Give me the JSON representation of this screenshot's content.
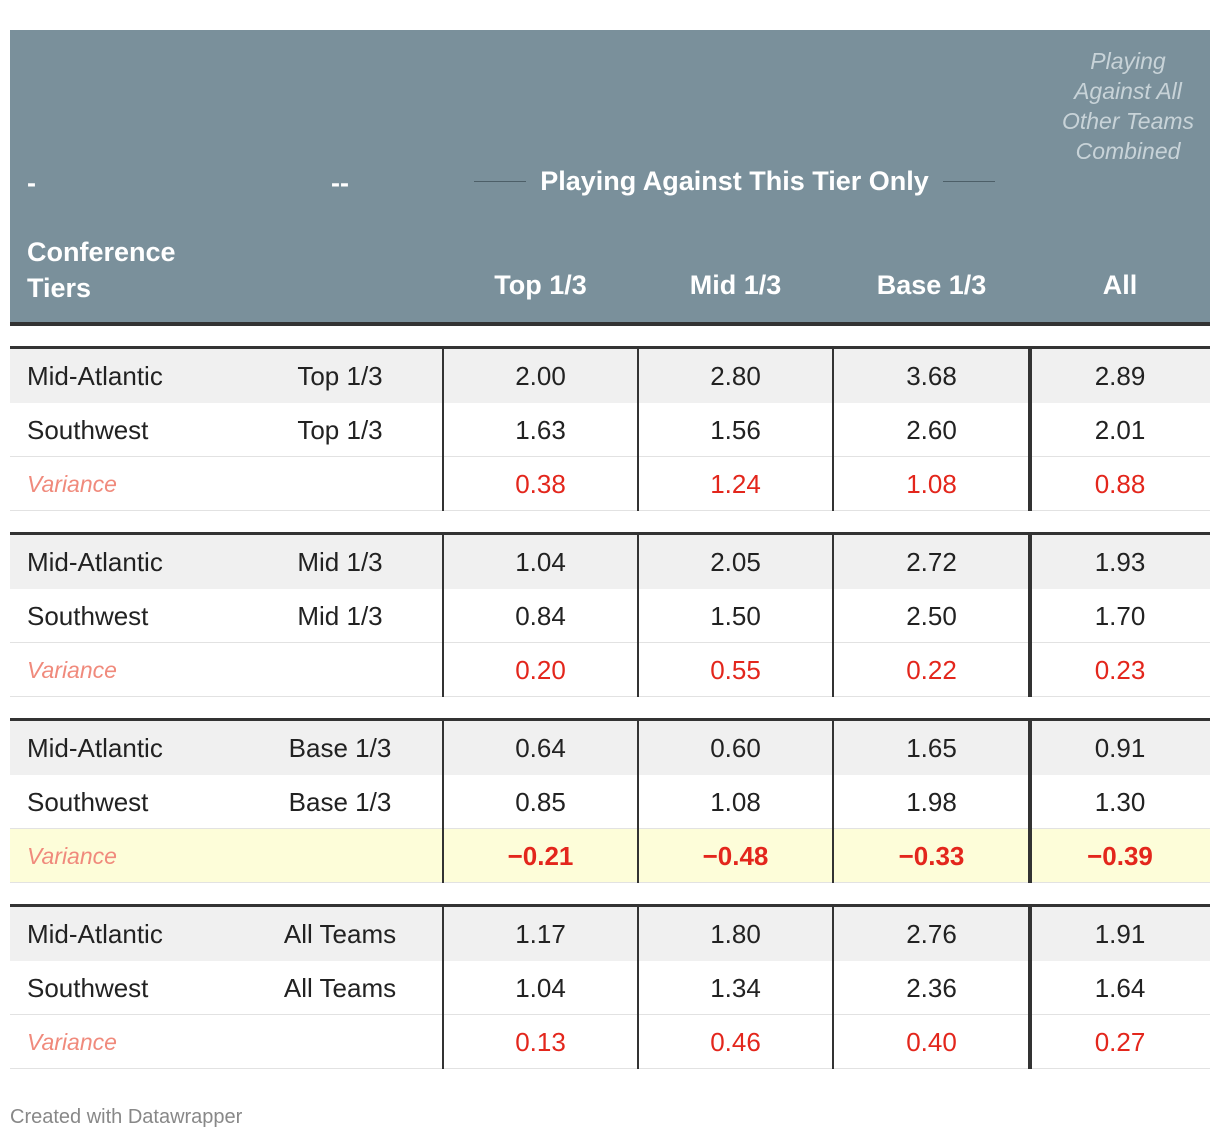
{
  "header": {
    "row1": [
      "-",
      "--"
    ],
    "group_label": "Playing Against This Tier Only",
    "all_note": "Playing Against All Other Teams Combined",
    "row2": {
      "first": "Conference Tiers",
      "columns": [
        "Top 1/3",
        "Mid 1/3",
        "Base 1/3",
        "All"
      ]
    }
  },
  "table": {
    "groups": [
      {
        "rows": [
          {
            "name": "Mid-Atlantic",
            "tier": "Top 1/3",
            "values": [
              "2.00",
              "2.80",
              "3.68",
              "2.89"
            ]
          },
          {
            "name": "Southwest",
            "tier": "Top 1/3",
            "values": [
              "1.63",
              "1.56",
              "2.60",
              "2.01"
            ]
          }
        ],
        "variance": {
          "label": "Variance",
          "values": [
            "0.38",
            "1.24",
            "1.08",
            "0.88"
          ]
        }
      },
      {
        "rows": [
          {
            "name": "Mid-Atlantic",
            "tier": "Mid 1/3",
            "values": [
              "1.04",
              "2.05",
              "2.72",
              "1.93"
            ]
          },
          {
            "name": "Southwest",
            "tier": "Mid 1/3",
            "values": [
              "0.84",
              "1.50",
              "2.50",
              "1.70"
            ]
          }
        ],
        "variance": {
          "label": "Variance",
          "values": [
            "0.20",
            "0.55",
            "0.22",
            "0.23"
          ]
        }
      },
      {
        "rows": [
          {
            "name": "Mid-Atlantic",
            "tier": "Base 1/3",
            "values": [
              "0.64",
              "0.60",
              "1.65",
              "0.91"
            ]
          },
          {
            "name": "Southwest",
            "tier": "Base 1/3",
            "values": [
              "0.85",
              "1.08",
              "1.98",
              "1.30"
            ]
          }
        ],
        "variance": {
          "label": "Variance",
          "values": [
            "−0.21",
            "−0.48",
            "−0.33",
            "−0.39"
          ],
          "highlight": true
        }
      },
      {
        "rows": [
          {
            "name": "Mid-Atlantic",
            "tier": "All Teams",
            "values": [
              "1.17",
              "1.80",
              "2.76",
              "1.91"
            ]
          },
          {
            "name": "Southwest",
            "tier": "All Teams",
            "values": [
              "1.04",
              "1.34",
              "2.36",
              "1.64"
            ]
          }
        ],
        "variance": {
          "label": "Variance",
          "values": [
            "0.13",
            "0.46",
            "0.40",
            "0.27"
          ]
        }
      }
    ]
  },
  "footer": "Created with Datawrapper"
}
